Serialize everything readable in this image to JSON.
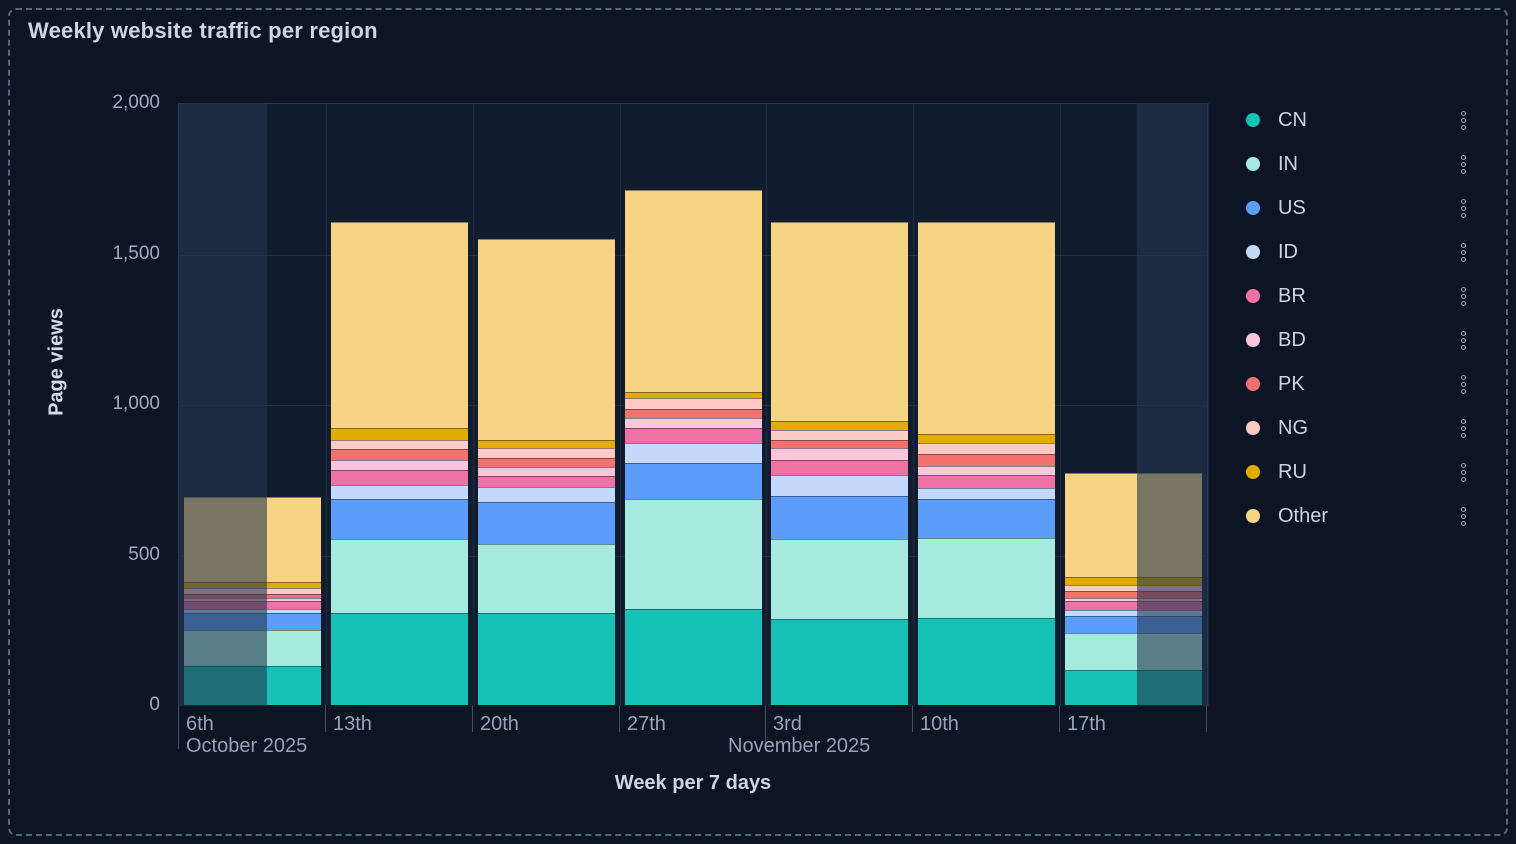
{
  "panel": {
    "title": "Weekly website traffic per region"
  },
  "chart_data": {
    "type": "bar",
    "stacked": true,
    "title": "Weekly website traffic per region",
    "xlabel": "Week per 7 days",
    "ylabel": "Page views",
    "ylim": [
      0,
      2000
    ],
    "grid": true,
    "legend_position": "right",
    "legend_item_menu_icon": "kebab-dots-icon",
    "yticks": [
      {
        "label": "0",
        "value": 0
      },
      {
        "label": "500",
        "value": 500
      },
      {
        "label": "1,000",
        "value": 1000
      },
      {
        "label": "1,500",
        "value": 1500
      },
      {
        "label": "2,000",
        "value": 2000
      }
    ],
    "xticks": [
      {
        "label": "6th",
        "month": "October 2025",
        "long_tick": true
      },
      {
        "label": "13th",
        "month": null,
        "long_tick": false
      },
      {
        "label": "20th",
        "month": null,
        "long_tick": false
      },
      {
        "label": "27th",
        "month": null,
        "long_tick": false
      },
      {
        "label": "3rd",
        "month": "November 2025",
        "long_tick": true
      },
      {
        "label": "10th",
        "month": null,
        "long_tick": false
      },
      {
        "label": "17th",
        "month": null,
        "long_tick": false
      }
    ],
    "categories": [
      "6th",
      "13th",
      "20th",
      "27th",
      "3rd",
      "10th",
      "17th"
    ],
    "series": [
      {
        "name": "CN",
        "color": "#15C2B5",
        "values": [
          130,
          305,
          305,
          320,
          285,
          290,
          115
        ]
      },
      {
        "name": "IN",
        "color": "#A6EADF",
        "values": [
          120,
          245,
          230,
          365,
          265,
          265,
          125
        ]
      },
      {
        "name": "US",
        "color": "#5B9DF8",
        "values": [
          55,
          135,
          140,
          120,
          145,
          130,
          55
        ]
      },
      {
        "name": "ID",
        "color": "#C3D8FB",
        "values": [
          15,
          45,
          50,
          65,
          70,
          35,
          20
        ]
      },
      {
        "name": "BR",
        "color": "#EF72A5",
        "values": [
          25,
          50,
          35,
          50,
          50,
          45,
          30
        ]
      },
      {
        "name": "BD",
        "color": "#FBC5DB",
        "values": [
          10,
          35,
          30,
          35,
          40,
          30,
          10
        ]
      },
      {
        "name": "PK",
        "color": "#F4726E",
        "values": [
          15,
          35,
          30,
          30,
          25,
          40,
          25
        ]
      },
      {
        "name": "NG",
        "color": "#FFCBC4",
        "values": [
          20,
          30,
          35,
          35,
          35,
          35,
          20
        ]
      },
      {
        "name": "RU",
        "color": "#E3AC00",
        "values": [
          20,
          40,
          25,
          20,
          30,
          30,
          25
        ]
      },
      {
        "name": "Other",
        "color": "#F6D484",
        "values": [
          280,
          685,
          670,
          670,
          660,
          705,
          345
        ]
      }
    ],
    "dimmed_ranges": [
      {
        "start_frac": 0.0,
        "end_frac": 0.084
      },
      {
        "start_frac": 0.932,
        "end_frac": 1.0
      }
    ]
  }
}
